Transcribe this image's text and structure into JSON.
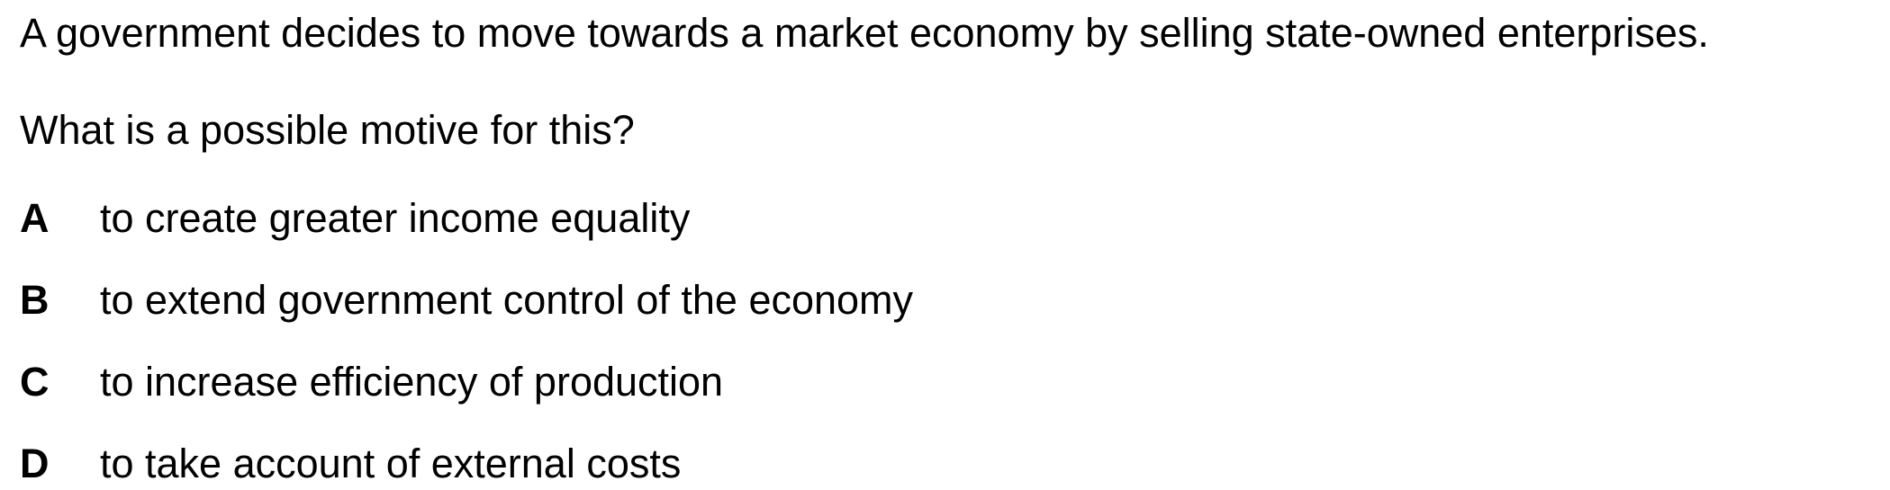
{
  "question": {
    "stem": "A government decides to move towards a market economy by selling state-owned enterprises.",
    "prompt": "What is a possible motive for this?",
    "options": [
      {
        "letter": "A",
        "text": "to create greater income equality"
      },
      {
        "letter": "B",
        "text": "to extend government control of the economy"
      },
      {
        "letter": "C",
        "text": "to increase efficiency of production"
      },
      {
        "letter": "D",
        "text": "to take account of external costs"
      }
    ]
  }
}
